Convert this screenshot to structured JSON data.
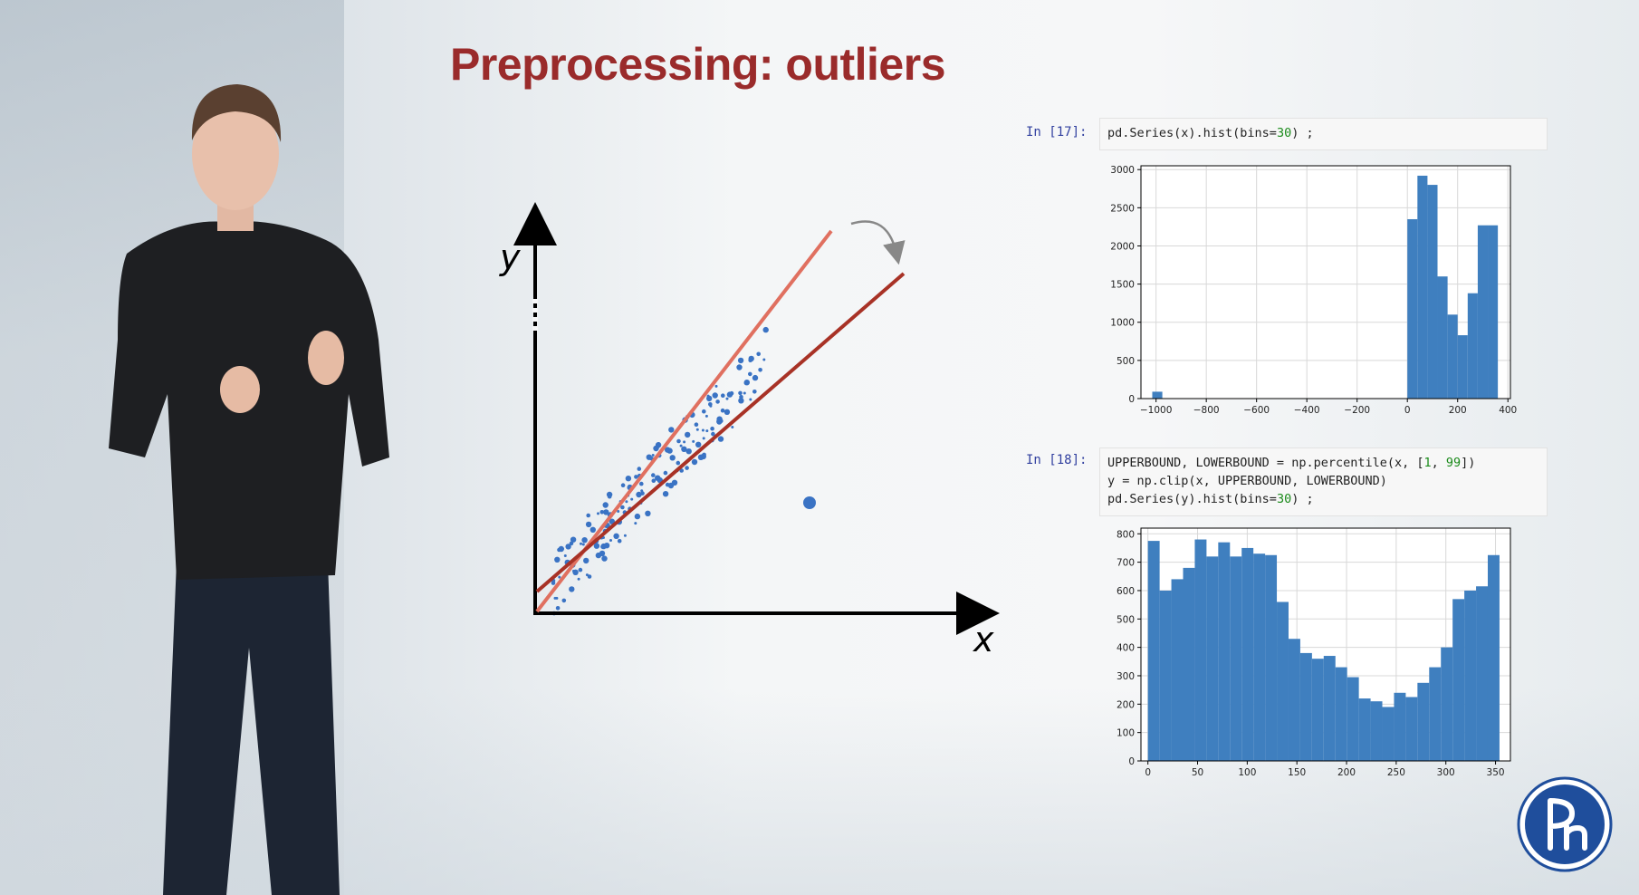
{
  "slide": {
    "title": "Preprocessing: outliers"
  },
  "illustration": {
    "xlabel": "x",
    "ylabel": "y",
    "outlier_point": {
      "x": 7.1,
      "y": 2.4
    }
  },
  "cells": [
    {
      "prompt": "In [17]:",
      "code_lines": [
        "pd.Series(x).hist(bins=30) ;"
      ]
    },
    {
      "prompt": "In [18]:",
      "code_lines": [
        "UPPERBOUND, LOWERBOUND = np.percentile(x, [1, 99])",
        "y = np.clip(x, UPPERBOUND, LOWERBOUND)",
        "pd.Series(y).hist(bins=30) ;"
      ]
    }
  ],
  "chart_data": [
    {
      "type": "bar",
      "title": "",
      "xlabel": "",
      "ylabel": "",
      "xlim": [
        -1060,
        410
      ],
      "ylim": [
        0,
        3050
      ],
      "xticks": [
        -1000,
        -800,
        -600,
        -400,
        -200,
        0,
        200,
        400
      ],
      "xtick_labels": [
        "−1000",
        "−800",
        "−600",
        "−400",
        "−200",
        "0",
        "200",
        "400"
      ],
      "yticks": [
        0,
        500,
        1000,
        1500,
        2000,
        2500,
        3000
      ],
      "ytick_labels": [
        "0",
        "500",
        "1000",
        "1500",
        "2000",
        "2500",
        "3000"
      ],
      "grid": true,
      "color": "#3f7fbf",
      "bins": [
        {
          "x0": -1015,
          "x1": -975,
          "value": 90
        },
        {
          "x0": 0,
          "x1": 40,
          "value": 2350
        },
        {
          "x0": 40,
          "x1": 80,
          "value": 2920
        },
        {
          "x0": 80,
          "x1": 120,
          "value": 2800
        },
        {
          "x0": 120,
          "x1": 160,
          "value": 1600
        },
        {
          "x0": 160,
          "x1": 200,
          "value": 1100
        },
        {
          "x0": 200,
          "x1": 240,
          "value": 830
        },
        {
          "x0": 240,
          "x1": 280,
          "value": 1380
        },
        {
          "x0": 280,
          "x1": 320,
          "value": 2270
        },
        {
          "x0": 320,
          "x1": 360,
          "value": 2270
        }
      ]
    },
    {
      "type": "bar",
      "title": "",
      "xlabel": "",
      "ylabel": "",
      "xlim": [
        -7,
        365
      ],
      "ylim": [
        0,
        820
      ],
      "xticks": [
        0,
        50,
        100,
        150,
        200,
        250,
        300,
        350
      ],
      "xtick_labels": [
        "0",
        "50",
        "100",
        "150",
        "200",
        "250",
        "300",
        "350"
      ],
      "yticks": [
        0,
        100,
        200,
        300,
        400,
        500,
        600,
        700,
        800
      ],
      "ytick_labels": [
        "0",
        "100",
        "200",
        "300",
        "400",
        "500",
        "600",
        "700",
        "800"
      ],
      "grid": true,
      "color": "#3f7fbf",
      "bin_width": 11.8,
      "values": [
        775,
        600,
        640,
        680,
        780,
        720,
        770,
        720,
        750,
        730,
        725,
        560,
        430,
        380,
        360,
        370,
        330,
        295,
        220,
        210,
        190,
        240,
        225,
        275,
        330,
        400,
        570,
        600,
        615,
        725
      ]
    }
  ]
}
